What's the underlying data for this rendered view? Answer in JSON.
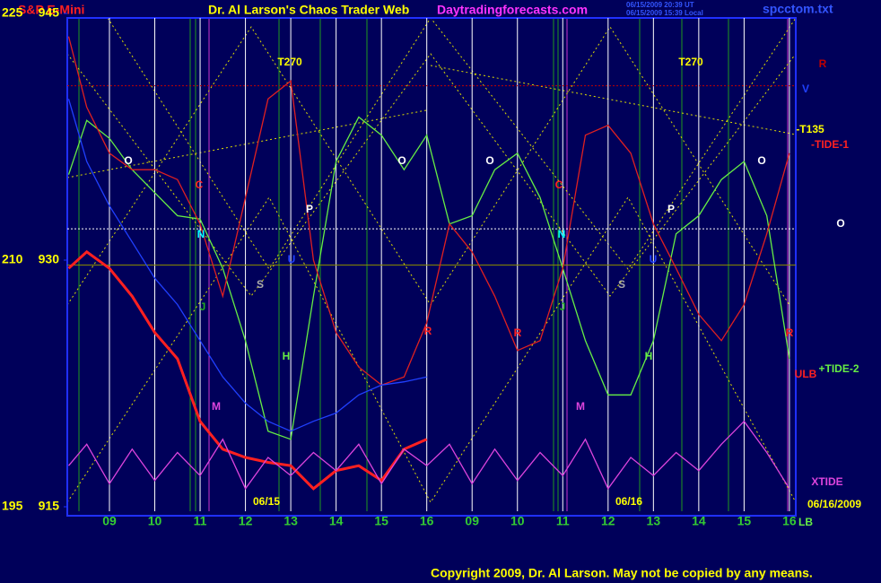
{
  "chart_data": {
    "type": "line",
    "title": "Dr. Al Larson's Chaos Trader Web",
    "symbol": "S&P E-Mini",
    "site": "Daytradingforecasts.com",
    "stamp_ut": "06/15/2009 20:39 UT",
    "stamp_local": "06/15/2009 15:39 Local",
    "file": "spcctom.txt",
    "copyright": "Copyright 2009, Dr. Al Larson. May not be copied by any means.",
    "x": [
      0.1,
      0.5,
      1,
      1.5,
      2,
      2.5,
      3,
      3.5,
      4,
      4.5,
      5,
      5.5,
      6,
      6.5,
      7,
      7.5,
      8,
      8.5,
      9,
      9.5,
      10,
      10.5,
      11,
      11.5,
      12,
      12.5,
      13,
      13.5,
      14,
      14.5,
      15,
      15.5,
      16
    ],
    "xlim": [
      0.07,
      16.14
    ],
    "xticks": [
      {
        "value": 1,
        "label": "09"
      },
      {
        "value": 2,
        "label": "10"
      },
      {
        "value": 3,
        "label": "11"
      },
      {
        "value": 4,
        "label": "12"
      },
      {
        "value": 5,
        "label": "13"
      },
      {
        "value": 6,
        "label": "14"
      },
      {
        "value": 7,
        "label": "15"
      },
      {
        "value": 8,
        "label": "16"
      },
      {
        "value": 9,
        "label": "09"
      },
      {
        "value": 10,
        "label": "10"
      },
      {
        "value": 11,
        "label": "11"
      },
      {
        "value": 12,
        "label": "12"
      },
      {
        "value": 13,
        "label": "13"
      },
      {
        "value": 14,
        "label": "14"
      },
      {
        "value": 15,
        "label": "15"
      },
      {
        "value": 16,
        "label": "16"
      }
    ],
    "ylim": [
      915,
      945
    ],
    "yticks": [
      915,
      930,
      945
    ],
    "y2lim": [
      195,
      225
    ],
    "y2ticks": [
      195,
      210,
      225
    ],
    "grid": true,
    "series": [
      {
        "name": "+TIDE-2",
        "color": "#66ee44",
        "values": [
          935.2,
          938.5,
          937.4,
          935.5,
          934.1,
          932.7,
          932.5,
          929.5,
          925.1,
          919.6,
          919.1,
          927.8,
          936.0,
          938.7,
          937.6,
          935.5,
          937.6,
          932.2,
          932.7,
          935.5,
          936.5,
          933.8,
          929.5,
          925.1,
          921.8,
          921.8,
          925.1,
          931.6,
          932.7,
          934.9,
          936.0,
          932.7,
          924.0
        ]
      },
      {
        "name": "-TIDE-1",
        "color": "#e02020",
        "values": [
          943.6,
          939.3,
          936.5,
          935.5,
          935.5,
          934.9,
          932.2,
          927.8,
          933.8,
          939.8,
          940.9,
          930.0,
          925.6,
          923.5,
          922.4,
          922.9,
          926.2,
          932.2,
          930.5,
          927.8,
          924.5,
          925.1,
          929.5,
          937.6,
          938.2,
          936.5,
          932.2,
          929.5,
          926.7,
          925.1,
          927.3,
          931.6,
          936.5
        ]
      },
      {
        "name": "V",
        "color": "#2040ff",
        "values": [
          939.8,
          936.0,
          933.3,
          931.1,
          928.9,
          927.3,
          925.1,
          922.9,
          921.3,
          920.2,
          919.6,
          920.2,
          920.7,
          921.8,
          922.4,
          922.6,
          922.9,
          null,
          null,
          null,
          null,
          null,
          null,
          null,
          null,
          null,
          null,
          null,
          null,
          null,
          null,
          null,
          null
        ]
      },
      {
        "name": "S&P E-Mini",
        "color": "#ff2020",
        "values": [
          929.5,
          930.5,
          929.5,
          927.8,
          925.6,
          924.0,
          920.2,
          918.5,
          918.0,
          917.7,
          917.5,
          916.1,
          917.2,
          917.5,
          916.6,
          918.5,
          919.1,
          null,
          null,
          null,
          null,
          null,
          null,
          null,
          null,
          null,
          null,
          null,
          null,
          null,
          null,
          null,
          null
        ]
      },
      {
        "name": "XTIDE",
        "color": "#dd44dd",
        "values": [
          917.5,
          918.8,
          916.4,
          918.5,
          916.6,
          918.3,
          916.9,
          919.1,
          916.1,
          918.0,
          916.9,
          918.3,
          917.2,
          918.8,
          916.4,
          918.5,
          917.5,
          918.8,
          916.4,
          918.5,
          916.6,
          918.3,
          916.9,
          919.1,
          916.1,
          918.0,
          916.9,
          918.3,
          917.2,
          918.8,
          920.2,
          918.3,
          916.1
        ]
      }
    ],
    "reference_lines": [
      {
        "value": 940.6,
        "color": "#c00000"
      },
      {
        "value": 931.9,
        "color": "#ffffff"
      },
      {
        "value": 929.7,
        "color": "#888800"
      }
    ],
    "annotations": [
      {
        "text": "T270",
        "color": "#ffff00"
      },
      {
        "text": "T270",
        "color": "#ffff00"
      },
      {
        "text": "R",
        "color": "#c00000"
      },
      {
        "text": "V",
        "color": "#2040ff"
      },
      {
        "text": "-T135",
        "color": "#ffff00"
      },
      {
        "text": "-TIDE-1",
        "color": "#ff2020"
      },
      {
        "text": "O",
        "color": "#ffffff"
      },
      {
        "text": "O",
        "color": "#ffffff"
      },
      {
        "text": "O",
        "color": "#ffffff"
      },
      {
        "text": "O",
        "color": "#ffffff"
      },
      {
        "text": "O",
        "color": "#ffffff"
      },
      {
        "text": "C",
        "color": "#ff2020"
      },
      {
        "text": "C",
        "color": "#ff2020"
      },
      {
        "text": "N",
        "color": "#00ffff"
      },
      {
        "text": "N",
        "color": "#00ffff"
      },
      {
        "text": "P",
        "color": "#ffffff"
      },
      {
        "text": "P",
        "color": "#ffffff"
      },
      {
        "text": "U",
        "color": "#2040ff"
      },
      {
        "text": "U",
        "color": "#2040ff"
      },
      {
        "text": "S",
        "color": "#aaaaaa"
      },
      {
        "text": "S",
        "color": "#aaaaaa"
      },
      {
        "text": "J",
        "color": "#22aa22"
      },
      {
        "text": "J",
        "color": "#22aa22"
      },
      {
        "text": "H",
        "color": "#66ee44"
      },
      {
        "text": "H",
        "color": "#66ee44"
      },
      {
        "text": "R",
        "color": "#ff2020"
      },
      {
        "text": "R",
        "color": "#ff2020"
      },
      {
        "text": "R",
        "color": "#ff2020"
      },
      {
        "text": "M",
        "color": "#dd44dd"
      },
      {
        "text": "M",
        "color": "#dd44dd"
      },
      {
        "text": "ULB",
        "color": "#ff2020"
      },
      {
        "text": "+TIDE-2",
        "color": "#66ee44"
      },
      {
        "text": "XTIDE",
        "color": "#dd44dd"
      },
      {
        "text": "06/15",
        "color": "#ffff00"
      },
      {
        "text": "06/16",
        "color": "#ffff00"
      },
      {
        "text": "06/16/2009",
        "color": "#ffff00"
      },
      {
        "text": "LB",
        "color": "#66ee44"
      }
    ]
  }
}
